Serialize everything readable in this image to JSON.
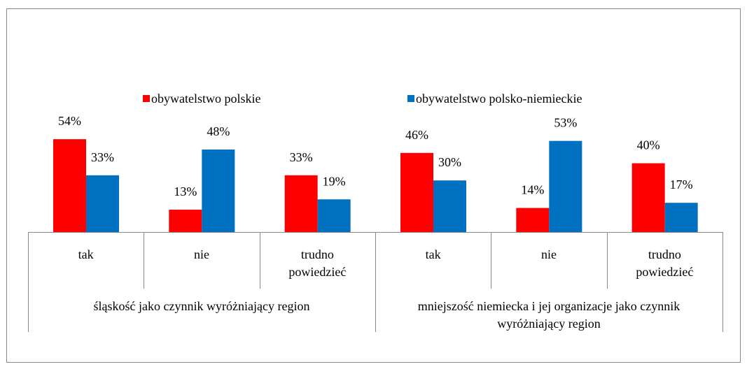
{
  "chart_data": {
    "type": "bar",
    "categories": [
      "tak",
      "nie",
      "trudno powiedzieć",
      "tak",
      "nie",
      "trudno powiedzieć"
    ],
    "groups": [
      "śląskość jako czynnik wyróżniający region",
      "mniejszość niemiecka i jej organizacje jako czynnik wyróżniający region"
    ],
    "series": [
      {
        "name": "obywatelstwo polskie",
        "color": "#ff0000",
        "values": [
          54,
          13,
          33,
          46,
          14,
          40
        ],
        "value_labels": [
          "54%",
          "13%",
          "33%",
          "46%",
          "14%",
          "40%"
        ]
      },
      {
        "name": "obywatelstwo polsko-niemieckie",
        "color": "#0070c0",
        "values": [
          33,
          48,
          19,
          30,
          53,
          17
        ],
        "value_labels": [
          "33%",
          "48%",
          "19%",
          "30%",
          "53%",
          "17%"
        ]
      }
    ],
    "legend": "top"
  }
}
